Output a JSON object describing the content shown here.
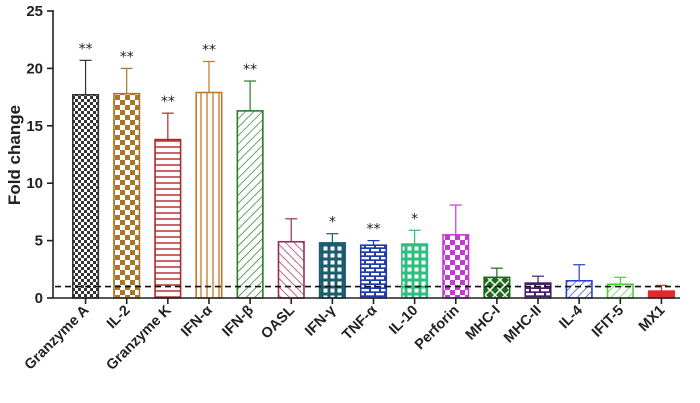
{
  "chart_data": {
    "type": "bar",
    "title": "",
    "xlabel": "",
    "ylabel": "Fold change",
    "ylim": [
      0,
      25
    ],
    "yticks": [
      0,
      5,
      10,
      15,
      20,
      25
    ],
    "reference_line": 1,
    "bars": [
      {
        "label": "Granzyme A",
        "value": 17.7,
        "error": 3.0,
        "sig": "**",
        "color": "#333333",
        "pattern": "checker"
      },
      {
        "label": "IL-2",
        "value": 17.8,
        "error": 2.2,
        "sig": "**",
        "color": "#a8772a",
        "pattern": "checker-large"
      },
      {
        "label": "Granzyme K",
        "value": 13.8,
        "error": 2.3,
        "sig": "**",
        "color": "#b3262a",
        "pattern": "hlines"
      },
      {
        "label": "IFN-α",
        "value": 17.9,
        "error": 2.7,
        "sig": "**",
        "color": "#c4782a",
        "pattern": "vlines"
      },
      {
        "label": "IFN-β",
        "value": 16.3,
        "error": 2.6,
        "sig": "**",
        "color": "#2c7a2c",
        "pattern": "diag"
      },
      {
        "label": "OASL",
        "value": 4.9,
        "error": 2.0,
        "sig": "",
        "color": "#9e2a55",
        "pattern": "diag-back"
      },
      {
        "label": "IFN-γ",
        "value": 4.8,
        "error": 0.8,
        "sig": "*",
        "color": "#1b5c6e",
        "pattern": "grid"
      },
      {
        "label": "TNF-α",
        "value": 4.6,
        "error": 0.4,
        "sig": "**",
        "color": "#1f3bb0",
        "pattern": "brick"
      },
      {
        "label": "IL-10",
        "value": 4.7,
        "error": 1.2,
        "sig": "*",
        "color": "#2ebf7e",
        "pattern": "grid"
      },
      {
        "label": "Perforin",
        "value": 5.5,
        "error": 2.6,
        "sig": "",
        "color": "#c63ad4",
        "pattern": "checker-large"
      },
      {
        "label": "MHC-I",
        "value": 1.8,
        "error": 0.8,
        "sig": "",
        "color": "#1e6a1e",
        "pattern": "cross"
      },
      {
        "label": "MHC-II",
        "value": 1.3,
        "error": 0.6,
        "sig": "",
        "color": "#4a1f6e",
        "pattern": "brick"
      },
      {
        "label": "IL-4",
        "value": 1.5,
        "error": 1.4,
        "sig": "",
        "color": "#2a3fd0",
        "pattern": "diag"
      },
      {
        "label": "IFIT-5",
        "value": 1.2,
        "error": 0.6,
        "sig": "",
        "color": "#4ece3a",
        "pattern": "diag"
      },
      {
        "label": "MX1",
        "value": 0.6,
        "error": 0.5,
        "sig": "",
        "color": "#e02a2a",
        "pattern": "solid"
      }
    ]
  }
}
